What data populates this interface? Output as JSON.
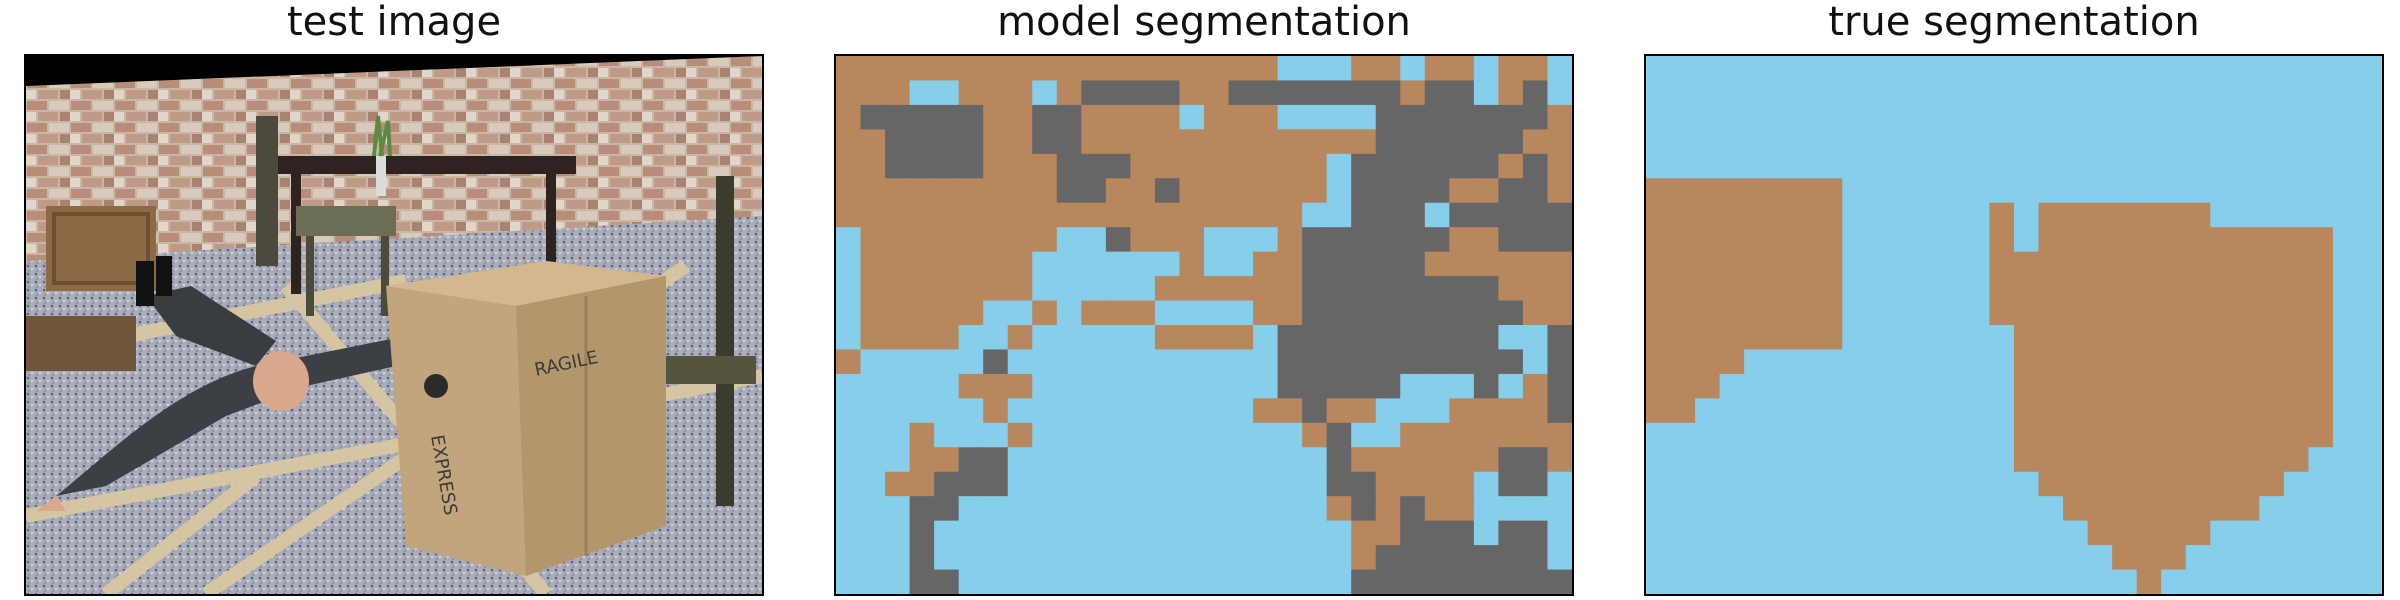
{
  "panels": [
    {
      "title": "test image"
    },
    {
      "title": "model segmentation"
    },
    {
      "title": "true segmentation"
    }
  ],
  "colors": {
    "background_class": "#87CEEB",
    "person_class": "#B8875E",
    "box_class": "#666666"
  },
  "grid": {
    "rows": 22,
    "cols": 30
  },
  "model_segmentation": [
    "BBBBBBBBBBBBBBBBBBS.SBBSBBSBBS",
    "BBBSSBBBSBGGGGBBGGGGGGGBGGSBGS",
    "BGGGGGBBGGBBBBSBBBSSSSGGGGGGGB",
    "BBGGGGBBGGBBBBBBBBBBBBGGGGGGBB",
    "BBGGGGBBBGGGBBBBBBBBSGGGGGGBGB",
    "BBBBBBBBBGGBBGBBBBBBSGGGGBBGGB",
    "BBBBBBBBBBBBBBBBBBBSSGGGSGGGGG",
    "SBBBBBBBBSSGBBBSSSBGGGGGGBBGGG",
    "SBBBBBBBSSSSSSBSSBBGGGGGBBBBBB",
    "SBBBBBBBSSSSSBBBBBBGGGGGGGGBBB",
    "SBBBBBSSBSBBBSSSSBBGGGGGGGGGBB",
    "SBBBBSSBSSSSSBBBBSGGGGGGGGGSSG",
    "BSSSSSGSSSSSSSSSSSGGGGGGGGGGSG",
    "SSSSSBBBSSSSSSSSSSGGGGGSSSGSBG",
    "SSSSSSBSSSSSSSSSSBBGBBSSSBBBBG",
    "SSSBSSSBSSSSSSSSSSSBGSSBBBBBBB",
    "SSSBBGGSSSSSSSSSSSSSGBBBBBBGGB",
    "SSBBGGGSSSSSSSSSSSSSGGBBBBSGGS",
    "SSSGGSSSSSSSSSSSSSSSBGBGBBSSSS",
    "SSSGSSSSSSSSSSSSSSSSSBBGGGSGGS",
    "SSSGSSSSSSSSSSSSSSSSSBGGGGGGGS",
    "SSSGGSSSSSSSSSSSSSSSSGGGGGGGGG"
  ],
  "true_segmentation": [
    "SSSSSSSSSSSSSSSSSSSSSSSSSSSSSS",
    "SSSSSSSSSSSSSSSSSSSSSSSSSSSSSS",
    "SSSSSSSSSSSSSSSSSSSSSSSSSSSSSS",
    "SSSSSSSSSSSSSSSSSSSSSSSSSSSSSS",
    "SSSSSSSSSSSSSSSSSSSSSSSSSSSSSS",
    "BBBBBBBBSSSSSSSSSSSSSSSSSSSSSS",
    "BBBBBBBBSSSSSSBSBBBBBBBSSSSSSS",
    "BBBBBBBBSSSSSSBSBBBBBBBBBBBBSS",
    "BBBBBBBBSSSSSSBBBBBBBBBBBBBBSS",
    "BBBBBBBBSSSSSSBBBBBBBBBBBBBBSS",
    "BBBBBBBBSSSSSSBBBBBBBBBBBBBBSS",
    "BBBBBBBBSSSSSSSBBBBBBBBBBBBBSS",
    "BBBBSSSSSSSSSSSBBBBBBBBBBBBBSS",
    "BBBSSSSSSSSSSSSBBBBBBBBBBBBBSS",
    "BBSSSSSSSSSSSSSBBBBBBBBBBBBBSS",
    "SSSSSSSSSSSSSSSBBBBBBBBBBBBBSS",
    "SSSSSSSSSSSSSSSBBBBBBBBBBBBSSS",
    "SSSSSSSSSSSSSSSSBBBBBBBBBBSSSS",
    "SSSSSSSSSSSSSSSSSBBBBBBBBSSSSS",
    "SSSSSSSSSSSSSSSSSSBBBBBSSSSSSS",
    "SSSSSSSSSSSSSSSSSSSBBBSSSSSSSS",
    "SSSSSSSSSSSSSSSSSSSSBSSSSSSSSS"
  ]
}
